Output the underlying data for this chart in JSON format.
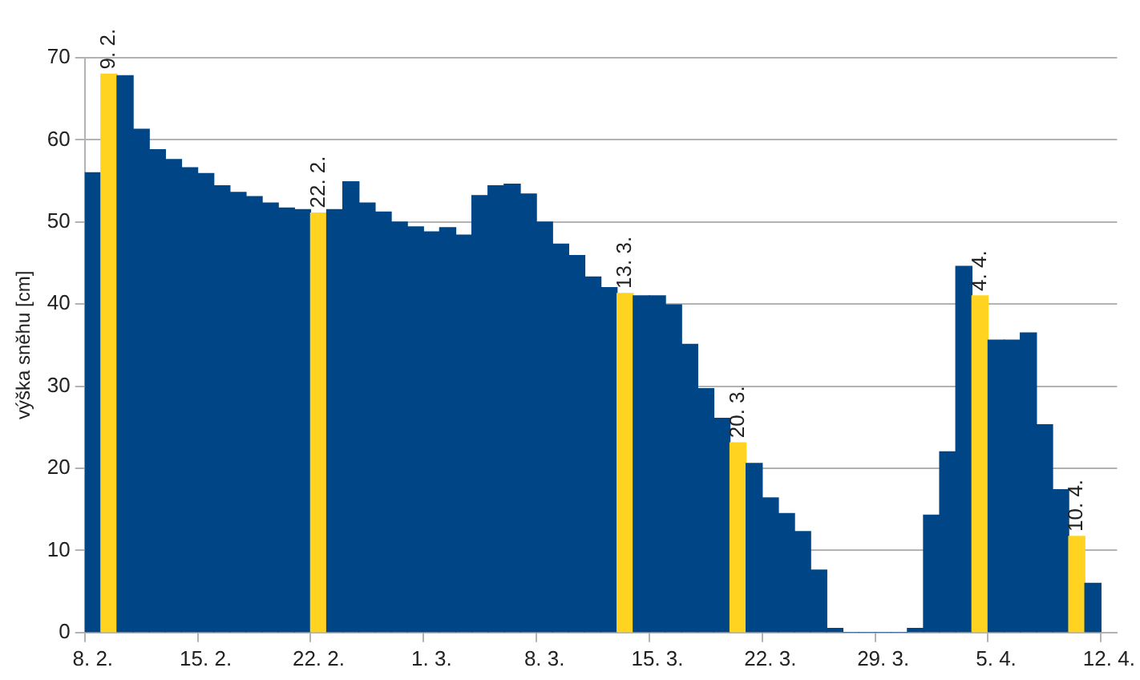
{
  "chart_data": {
    "type": "bar",
    "ylabel": "výška sněhu [cm]",
    "categories": [
      "8. 2.",
      null,
      null,
      null,
      null,
      null,
      null,
      "15. 2.",
      null,
      null,
      null,
      null,
      null,
      null,
      "22. 2.",
      null,
      null,
      null,
      null,
      null,
      null,
      "1. 3.",
      null,
      null,
      null,
      null,
      null,
      null,
      "8. 3.",
      null,
      null,
      null,
      null,
      null,
      null,
      "15. 3.",
      null,
      null,
      null,
      null,
      null,
      null,
      "22. 3.",
      null,
      null,
      null,
      null,
      null,
      null,
      "29. 3.",
      null,
      null,
      null,
      null,
      null,
      null,
      "5. 4.",
      null,
      null,
      null,
      null,
      null,
      null,
      "12. 4."
    ],
    "values": [
      56,
      68,
      67.8,
      61.3,
      58.8,
      57.6,
      56.6,
      55.9,
      54.4,
      53.6,
      53.1,
      52.3,
      51.7,
      51.5,
      51.1,
      51.5,
      54.9,
      52.3,
      51.2,
      50,
      49.4,
      48.8,
      49.3,
      48.4,
      53.2,
      54.4,
      54.6,
      53.4,
      50,
      47.3,
      45.9,
      43.3,
      42,
      41.3,
      41,
      41,
      39.9,
      35.1,
      29.7,
      26.1,
      23.1,
      20.6,
      16.4,
      14.5,
      12.3,
      7.6,
      0.5,
      0,
      0,
      0,
      0,
      0.5,
      14.3,
      22,
      44.6,
      41,
      35.6,
      35.6,
      36.5,
      25.3,
      17.4,
      11.7,
      6,
      null
    ],
    "colors": [
      "#004586",
      "#ffd320",
      "#004586",
      "#004586",
      "#004586",
      "#004586",
      "#004586",
      "#004586",
      "#004586",
      "#004586",
      "#004586",
      "#004586",
      "#004586",
      "#004586",
      "#ffd320",
      "#004586",
      "#004586",
      "#004586",
      "#004586",
      "#004586",
      "#004586",
      "#004586",
      "#004586",
      "#004586",
      "#004586",
      "#004586",
      "#004586",
      "#004586",
      "#004586",
      "#004586",
      "#004586",
      "#004586",
      "#004586",
      "#ffd320",
      "#004586",
      "#004586",
      "#004586",
      "#004586",
      "#004586",
      "#004586",
      "#ffd320",
      "#004586",
      "#004586",
      "#004586",
      "#004586",
      "#004586",
      "#004586",
      "#004586",
      "#004586",
      "#004586",
      "#004586",
      "#004586",
      "#004586",
      "#004586",
      "#004586",
      "#ffd320",
      "#004586",
      "#004586",
      "#004586",
      "#004586",
      "#004586",
      "#ffd320",
      "#004586",
      "#004586"
    ],
    "annotations": [
      "9. 2.",
      "22. 2.",
      "13. 3.",
      "20. 3.",
      "4. 4.",
      "10. 4."
    ],
    "ylim": [
      0,
      70
    ],
    "yticks": [
      0,
      10,
      20,
      30,
      40,
      50,
      60,
      70
    ],
    "grid": "y",
    "legend": false
  }
}
